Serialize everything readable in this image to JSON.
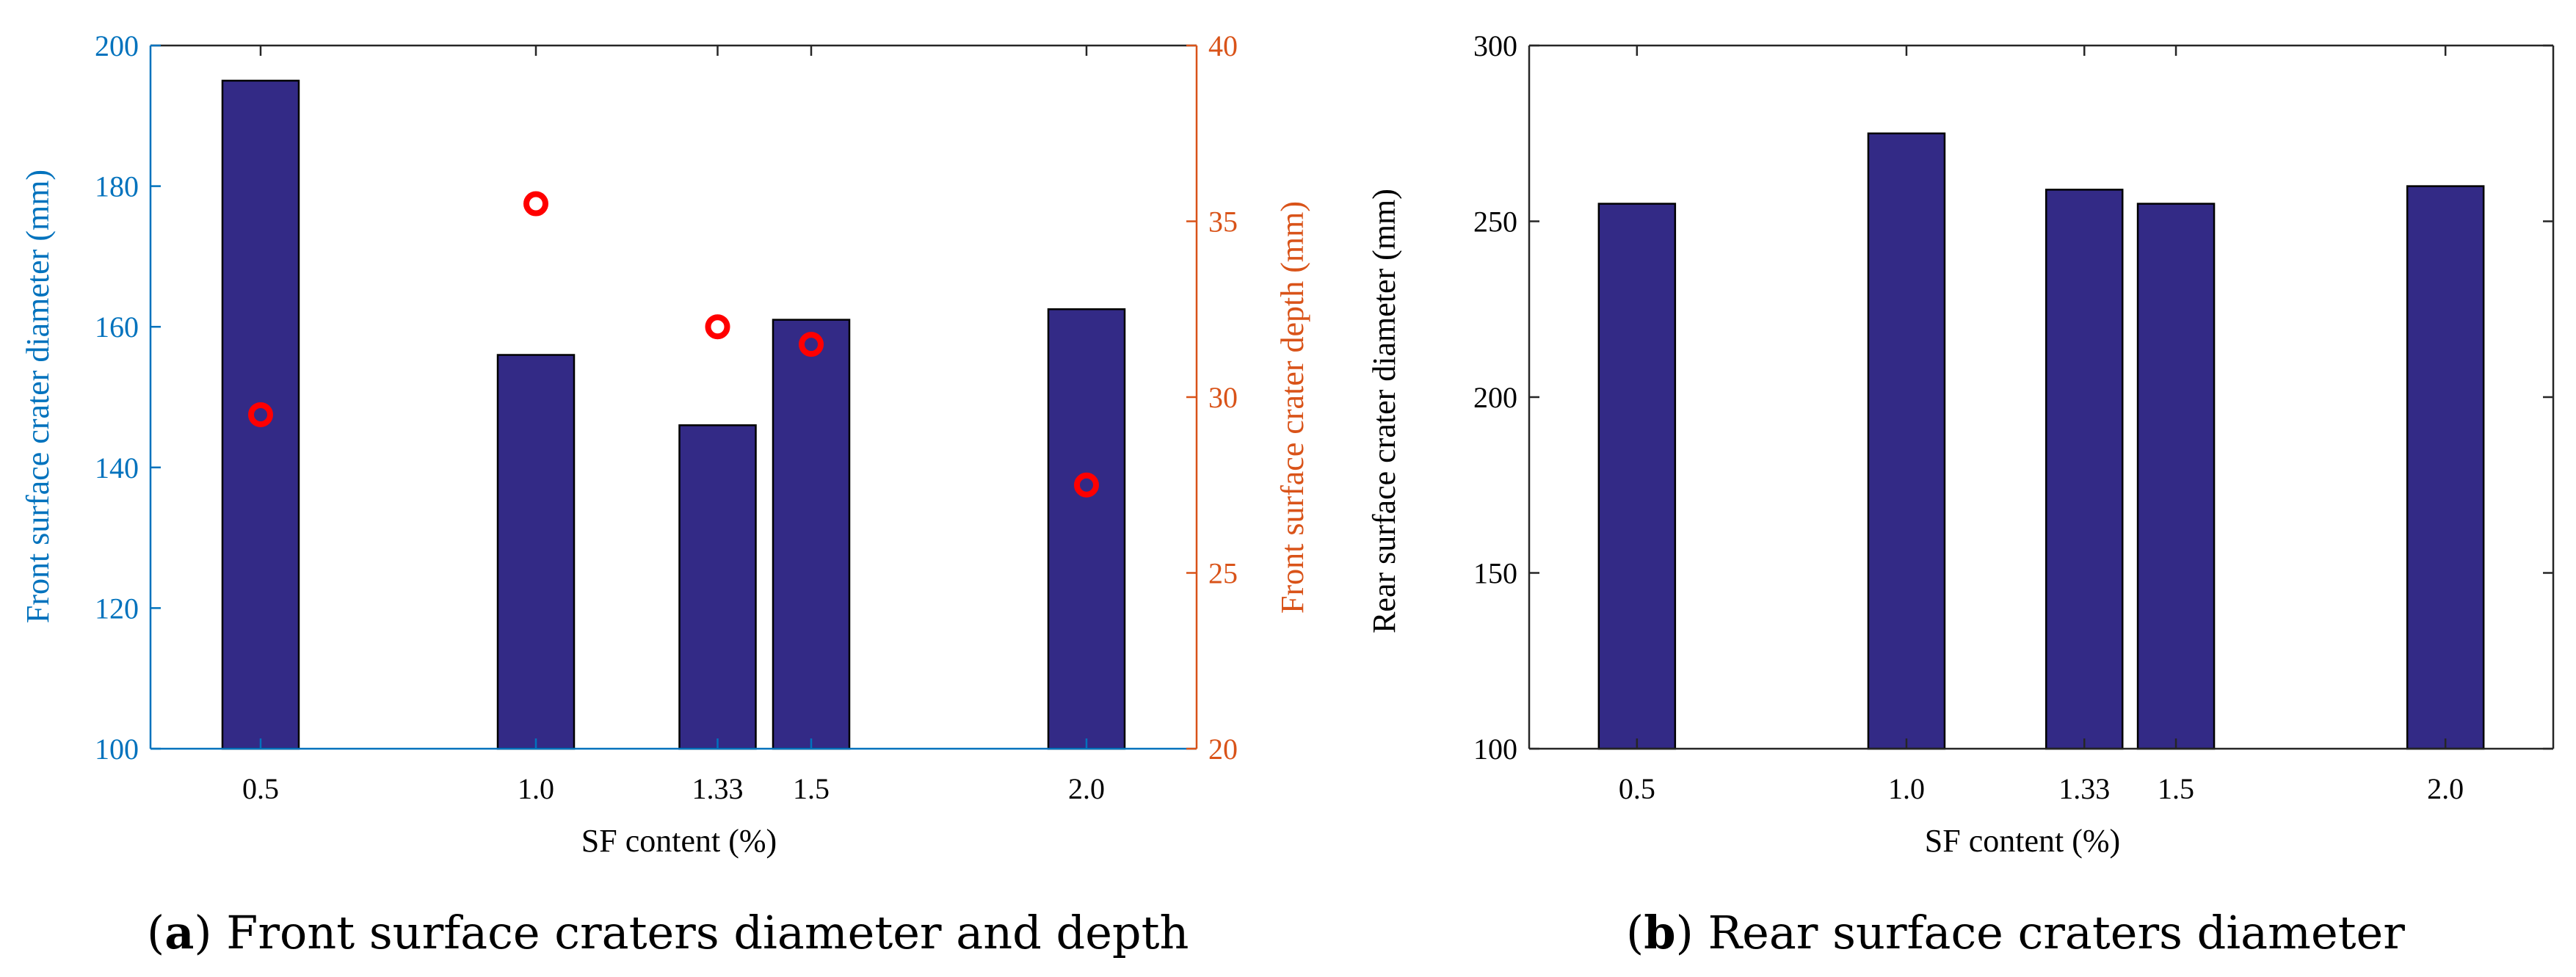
{
  "colors": {
    "bar_fill": "#332a86",
    "bar_edge": "#000000",
    "left_axis": "#0072bd",
    "right_axis": "#d95319",
    "marker": "#ff0000",
    "axis_black": "#262626"
  },
  "chart_data": [
    {
      "id": "a",
      "type": "bar",
      "caption": {
        "letter": "a",
        "text": "Front surface craters diameter and depth"
      },
      "xlabel": "SF content (%)",
      "x_positions": [
        0.5,
        1.0,
        1.33,
        1.5,
        2.0
      ],
      "x_tick_labels": [
        "0.5",
        "1.0",
        "1.33",
        "1.5",
        "2.0"
      ],
      "xlim": [
        0.3,
        2.2
      ],
      "ylabel": "Front surface crater diameter (mm)",
      "ylim": [
        100,
        200
      ],
      "yticks": [
        100,
        120,
        140,
        160,
        180,
        200
      ],
      "values": [
        195,
        156,
        146,
        161,
        162.5
      ],
      "secondary": {
        "type": "scatter",
        "ylabel": "Front surface crater depth (mm)",
        "ylim": [
          20,
          40
        ],
        "yticks": [
          20,
          25,
          30,
          35,
          40
        ],
        "x": [
          0.5,
          1.0,
          1.33,
          1.5,
          2.0
        ],
        "values": [
          29.5,
          35.5,
          32,
          31.5,
          27.5
        ]
      }
    },
    {
      "id": "b",
      "type": "bar",
      "caption": {
        "letter": "b",
        "text": "Rear surface craters diameter"
      },
      "xlabel": "SF content (%)",
      "x_positions": [
        0.5,
        1.0,
        1.33,
        1.5,
        2.0
      ],
      "x_tick_labels": [
        "0.5",
        "1.0",
        "1.33",
        "1.5",
        "2.0"
      ],
      "xlim": [
        0.3,
        2.2
      ],
      "ylabel": "Rear surface crater diameter (mm)",
      "ylim": [
        100,
        300
      ],
      "yticks": [
        100,
        150,
        200,
        250,
        300
      ],
      "values": [
        255,
        275,
        259,
        255,
        260
      ]
    }
  ]
}
